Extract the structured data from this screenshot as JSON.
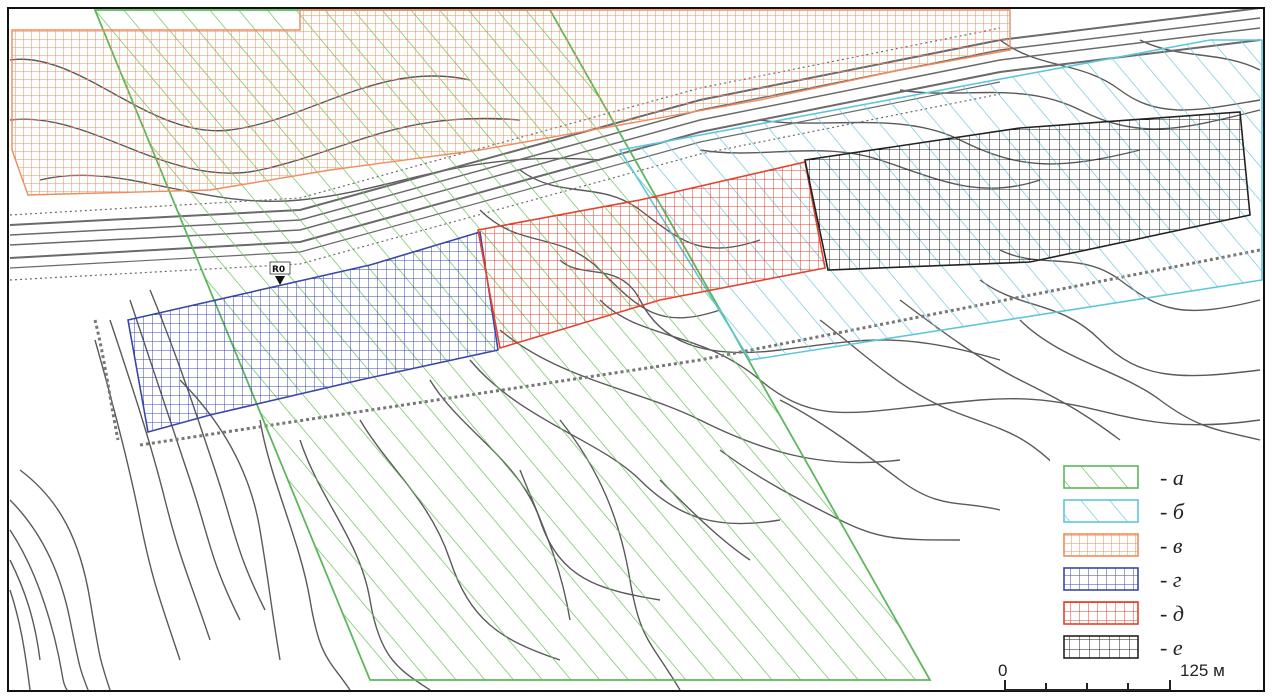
{
  "map": {
    "marker_label": "R0"
  },
  "legend": {
    "items": [
      {
        "key": "a",
        "label": "- а",
        "pattern": "diagonal-hatch",
        "color": "#5cb85c"
      },
      {
        "key": "b",
        "label": "- б",
        "pattern": "diagonal-hatch",
        "color": "#5ec6dc"
      },
      {
        "key": "v",
        "label": "- в",
        "pattern": "grid",
        "color": "#f08c5a"
      },
      {
        "key": "g",
        "label": "- г",
        "pattern": "grid",
        "color": "#3a47a8"
      },
      {
        "key": "d",
        "label": "- д",
        "pattern": "grid",
        "color": "#e5412c"
      },
      {
        "key": "e",
        "label": "- е",
        "pattern": "grid",
        "color": "#222222"
      }
    ]
  },
  "scale_bar": {
    "start_label": "0",
    "end_label": "125 м"
  }
}
